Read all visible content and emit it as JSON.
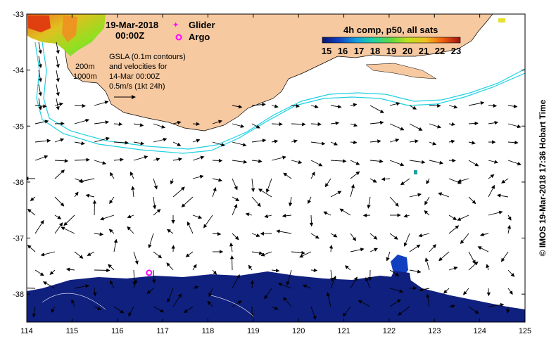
{
  "map": {
    "date_line": "19-Mar-2018",
    "time_line": "00:00Z",
    "legend_glider": "Glider",
    "legend_argo": "Argo",
    "gsla_lines": [
      "GSLA (0.1m contours)",
      "and velocities for",
      "14-Mar 00:00Z",
      "0.5m/s (1kt 24h)"
    ],
    "isobath_labels": [
      "200m",
      "1000m"
    ],
    "colorbar_title": "4h comp, p50, all sats",
    "colorbar_ticks": [
      "15",
      "16",
      "17",
      "18",
      "19",
      "20",
      "21",
      "22",
      "23"
    ],
    "credit": "© IMOS 19-Mar-2018 17:36 Hobart Time",
    "x_ticks": [
      "114",
      "115",
      "116",
      "117",
      "118",
      "119",
      "120",
      "121",
      "122",
      "123",
      "124",
      "125"
    ],
    "y_ticks": [
      "-33",
      "-34",
      "-35",
      "-36",
      "-37",
      "-38"
    ],
    "lon_range": [
      114,
      125
    ],
    "lat_range": [
      -38.5,
      -33
    ],
    "argo_float": {
      "lon": 116.7,
      "lat": -37.62
    },
    "colors": {
      "land": "#f7c9a0",
      "isobath": "#20d0e0",
      "marker": "#ff00ff",
      "cold_sst": "#10207f"
    }
  }
}
